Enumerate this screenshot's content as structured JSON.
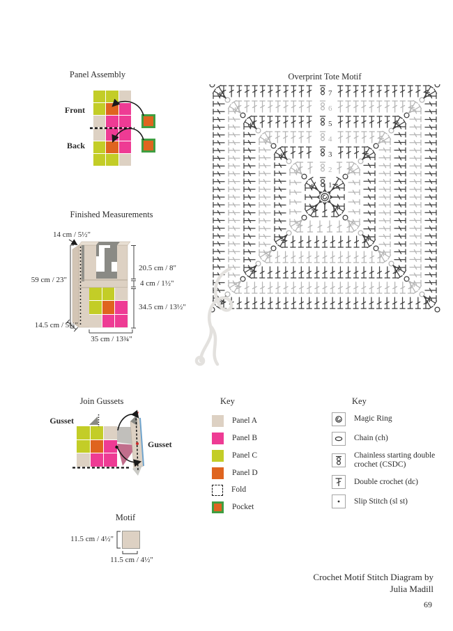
{
  "page": {
    "number": "69",
    "credit_line1": "Crochet Motif Stitch Diagram by",
    "credit_line2": "Julia Madill"
  },
  "panel_assembly": {
    "title": "Panel Assembly",
    "front_label": "Front",
    "back_label": "Back",
    "grid": [
      [
        "C",
        "C",
        "A"
      ],
      [
        "C",
        "D",
        "B"
      ],
      [
        "A",
        "B",
        "B"
      ],
      [
        "A",
        "B",
        "B"
      ],
      [
        "C",
        "D",
        "B"
      ],
      [
        "C",
        "C",
        "A"
      ]
    ]
  },
  "finished_measurements": {
    "title": "Finished Measurements",
    "handle_width": "14 cm / 5½\"",
    "total_height": "59 cm / 23\"",
    "handle_height": "20.5 cm / 8\"",
    "band_height": "4 cm / 1½\"",
    "body_height": "34.5 cm / 13½\"",
    "depth": "14.5 cm / 5¾\"",
    "width": "35 cm / 13¾\"",
    "grid": [
      [
        "C",
        "C",
        "A"
      ],
      [
        "C",
        "D",
        "B"
      ],
      [
        "A",
        "B",
        "B"
      ]
    ]
  },
  "motif_chart": {
    "title": "Overprint Tote Motif",
    "rounds": 7,
    "round_numbers": [
      "1",
      "2",
      "3",
      "4",
      "5",
      "6",
      "7"
    ],
    "dark_color": "#3d3d3d",
    "light_color": "#b4b4b4"
  },
  "join_gussets": {
    "title": "Join Gussets",
    "gusset_label_left": "Gusset",
    "gusset_label_right": "Gusset",
    "grid": [
      [
        "C",
        "C",
        "A"
      ],
      [
        "C",
        "D",
        "B"
      ],
      [
        "A",
        "B",
        "B"
      ]
    ]
  },
  "key_panels": {
    "title": "Key",
    "items": [
      {
        "type": "A",
        "label": "Panel A"
      },
      {
        "type": "B",
        "label": "Panel B"
      },
      {
        "type": "C",
        "label": "Panel C"
      },
      {
        "type": "D",
        "label": "Panel D"
      },
      {
        "type": "fold",
        "label": "Fold"
      },
      {
        "type": "pocket",
        "label": "Pocket"
      }
    ]
  },
  "key_stitches": {
    "title": "Key",
    "items": [
      {
        "symbol": "magic-ring",
        "label": "Magic Ring"
      },
      {
        "symbol": "chain",
        "label": "Chain (ch)"
      },
      {
        "symbol": "csdc",
        "label": "Chainless starting double crochet (CSDC)"
      },
      {
        "symbol": "double-crochet",
        "label": "Double crochet (dc)"
      },
      {
        "symbol": "slip-stitch",
        "label": "Slip Stitch (sl st)"
      }
    ]
  },
  "motif_size": {
    "title": "Motif",
    "height_label": "11.5 cm / 4½\"",
    "width_label": "11.5 cm / 4½\""
  },
  "colors": {
    "panel_a": "#ddd1c3",
    "panel_b": "#ee3b94",
    "panel_c": "#c3cd27",
    "panel_d": "#df641f",
    "pocket_border": "#3f9e41",
    "interior_gray": "#8a8a85",
    "side_shade": "#d3c5b5",
    "gusset_blue": "#6fa3cc",
    "accent_red": "#cc2a2a"
  }
}
